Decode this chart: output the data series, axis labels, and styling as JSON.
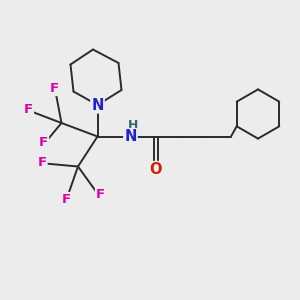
{
  "bg_color": "#ececec",
  "bond_color": "#2b2b2b",
  "bond_lw": 1.4,
  "atom_colors": {
    "N": "#2020cc",
    "F": "#dd00aa",
    "O": "#cc2200",
    "H": "#336666",
    "C": "#2b2b2b"
  },
  "figsize": [
    3.0,
    3.0
  ],
  "dpi": 100,
  "xlim": [
    0,
    10
  ],
  "ylim": [
    0,
    10
  ],
  "font_size": 9.5
}
